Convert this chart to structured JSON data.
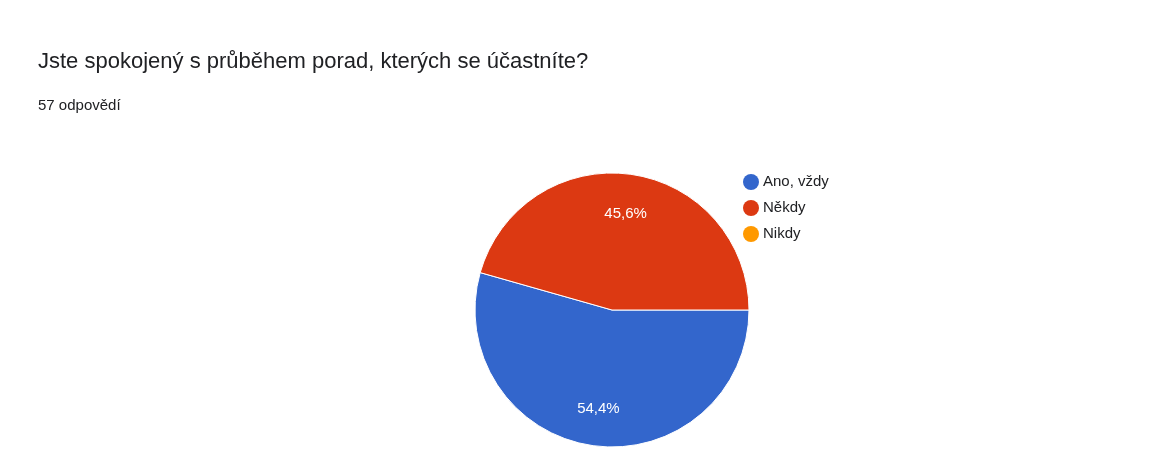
{
  "chart_data": {
    "type": "pie",
    "title": "Jste spokojený s průběhem porad, kterých se účastníte?",
    "subtitle": "57 odpovědí",
    "categories": [
      "Ano, vždy",
      "Někdy",
      "Nikdy"
    ],
    "values": [
      54.4,
      45.6,
      0
    ],
    "colors": [
      "#3366cc",
      "#dc3912",
      "#ff9900"
    ],
    "value_labels": [
      "54,4%",
      "45,6%",
      null
    ],
    "legend": "right"
  }
}
